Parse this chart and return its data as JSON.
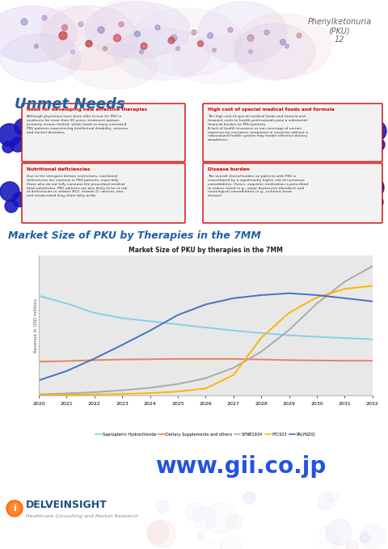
{
  "page_title_line1": "Phenylketonuria",
  "page_title_line2": "(PKU)",
  "page_title_line3": "12",
  "section_title": "Unmet Needs",
  "chart_section_title": "Market Size of PKU by Therapies in the 7MM",
  "chart_title": "Market Size of PKU by therapies in the 7MM",
  "ylabel": "Revenue in USD millions",
  "years": [
    2020,
    2021,
    2022,
    2023,
    2024,
    2025,
    2026,
    2027,
    2028,
    2029,
    2030,
    2031,
    2032
  ],
  "sapropterin": [
    320,
    295,
    265,
    248,
    238,
    228,
    218,
    208,
    200,
    193,
    188,
    184,
    180
  ],
  "dietary": [
    108,
    110,
    113,
    115,
    116,
    117,
    117,
    117,
    115,
    113,
    112,
    111,
    111
  ],
  "synb1934": [
    3,
    6,
    10,
    16,
    24,
    36,
    55,
    88,
    140,
    210,
    295,
    365,
    415
  ],
  "ptc923": [
    1,
    2,
    3,
    4,
    7,
    12,
    22,
    65,
    185,
    265,
    315,
    342,
    352
  ],
  "palynziq": [
    48,
    78,
    118,
    162,
    208,
    258,
    292,
    312,
    322,
    328,
    322,
    312,
    302
  ],
  "sapropterin_color": "#87CEEB",
  "dietary_color": "#E0875A",
  "synb1934_color": "#AAAAAA",
  "ptc923_color": "#FFB300",
  "palynziq_color": "#4472C4",
  "chart_bg_color": "#E8E8E8",
  "page_bg_color": "#FFFFFF",
  "unmet_needs_color": "#2060A0",
  "chart_section_title_color": "#2060A0",
  "box_border_color": "#CC0000",
  "box_bg_color": "#F2F2F2",
  "box1_title": "Need for developing new effective therapies",
  "box2_title": "High cost of special medical foods and formula",
  "box3_title": "Nutritional deficiencies",
  "box4_title": "Disease burden",
  "box1_text": "Although physicians have been able to test for PKU in\nnewborns for more than 50 years, treatment options\nprimarily remain limited, which leads to many untreated\nPKU patients experiencing intellectual disability, seizures,\nand mental disorders.",
  "box2_text": "The high cost of special medical foods and formula and\nfrequent visits to health professionals pose a substantial\nfinancial burden on PKU patients.\nA lack of health insurance or non-coverage of certain\nexpenses by insurance companies in countries without a\nnationalized health system may hinder effective dietary\ncompliance.",
  "box3_text": "Due to the stringent dietary restrictions, nutritional\ndeficiencies are common in PKU patients, especially\nthose who do not fully consume the prescribed medical\nfood substitutes. PKU patients are also likely to be at risk\nof deficiencies in vitamin B12, vitamin D, calcium, iron,\nand unsaturated long-chain fatty acids.",
  "box4_text": "The overall clinical burden on patients with PKU is\nexacerbated by a significantly higher risk of numerous\ncomorbidities. Hence, exquisite medication is prescribed\nto reduce mood (e.g., major depressive disorders) and\nneurological comorbidities (e.g., ischemic heart\ndisease).",
  "website": "www.gii.co.jp",
  "company_name": "DELVEINSIGHT",
  "company_sub": "Healthcare Consulting and Market Research",
  "legend_labels": [
    "Sapropterin Hydrochloride",
    "Dietary Supplements and others",
    "SYNB1934",
    "PTC923",
    "PALYNZIQ"
  ]
}
